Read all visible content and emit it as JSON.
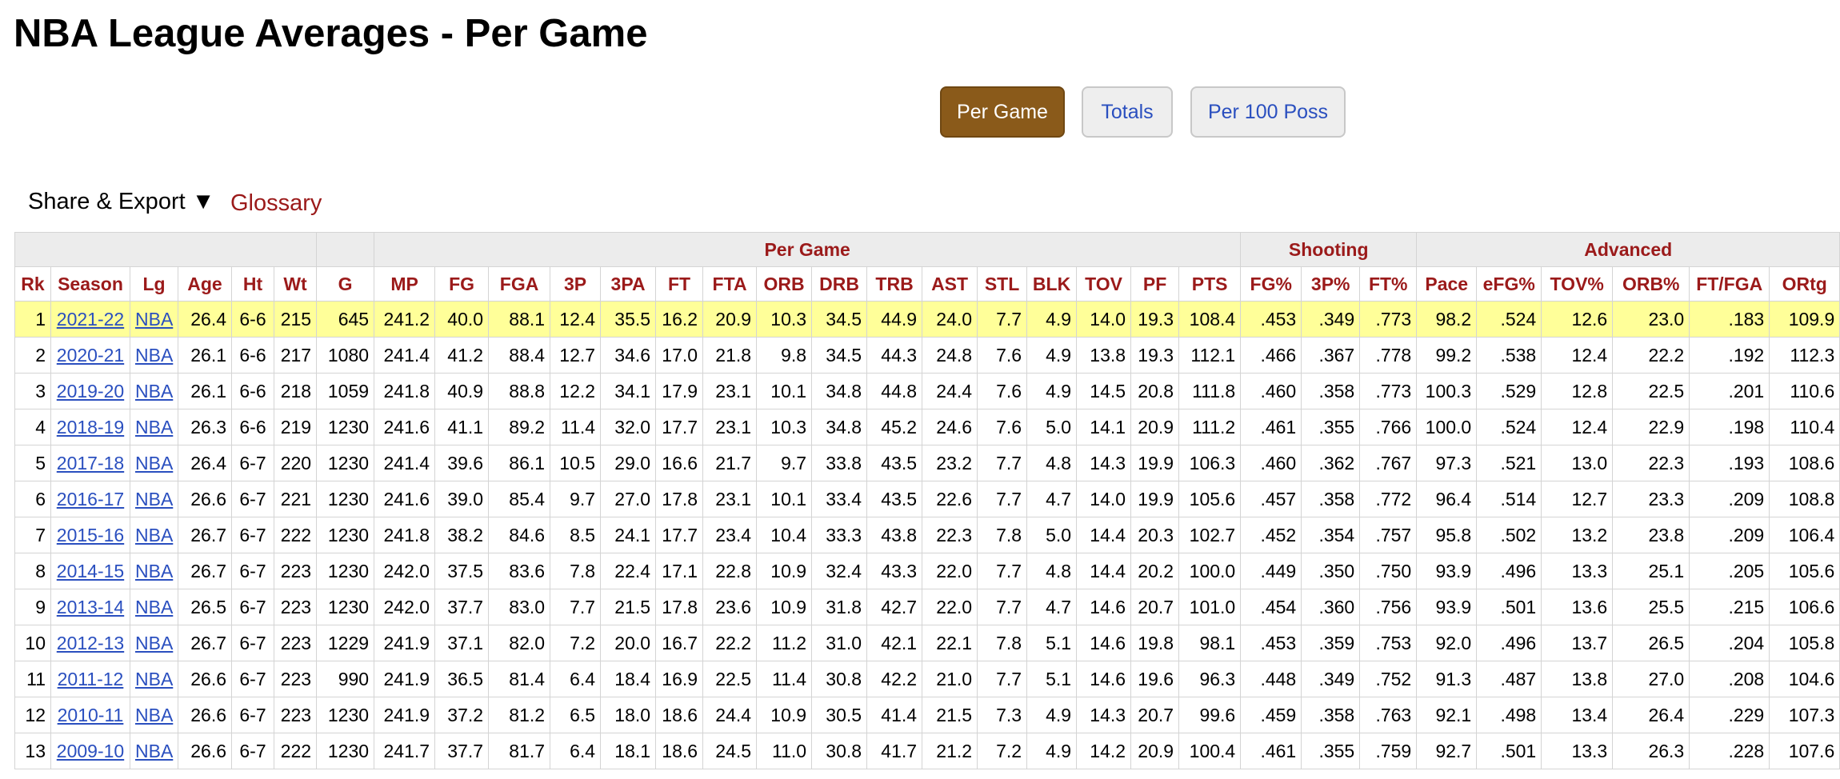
{
  "page": {
    "title": "NBA League Averages - Per Game"
  },
  "filters": {
    "per_game": "Per Game",
    "totals": "Totals",
    "per_100": "Per 100 Poss"
  },
  "toolbar": {
    "share_export": "Share & Export ▼",
    "glossary": "Glossary"
  },
  "colors": {
    "active_button": "#8a5a1a",
    "header_text": "#9b1a1a",
    "link": "#2a4fbf",
    "highlight_row": "#ffff99"
  },
  "table": {
    "over_headers": [
      "",
      "",
      "Per Game",
      "Shooting",
      "Advanced"
    ],
    "columns": [
      "Rk",
      "Season",
      "Lg",
      "Age",
      "Ht",
      "Wt",
      "G",
      "MP",
      "FG",
      "FGA",
      "3P",
      "3PA",
      "FT",
      "FTA",
      "ORB",
      "DRB",
      "TRB",
      "AST",
      "STL",
      "BLK",
      "TOV",
      "PF",
      "PTS",
      "FG%",
      "3P%",
      "FT%",
      "Pace",
      "eFG%",
      "TOV%",
      "ORB%",
      "FT/FGA",
      "ORtg"
    ],
    "rows": [
      [
        "1",
        "2021-22",
        "NBA",
        "26.4",
        "6-6",
        "215",
        "645",
        "241.2",
        "40.0",
        "88.1",
        "12.4",
        "35.5",
        "16.2",
        "20.9",
        "10.3",
        "34.5",
        "44.9",
        "24.0",
        "7.7",
        "4.9",
        "14.0",
        "19.3",
        "108.4",
        ".453",
        ".349",
        ".773",
        "98.2",
        ".524",
        "12.6",
        "23.0",
        ".183",
        "109.9"
      ],
      [
        "2",
        "2020-21",
        "NBA",
        "26.1",
        "6-6",
        "217",
        "1080",
        "241.4",
        "41.2",
        "88.4",
        "12.7",
        "34.6",
        "17.0",
        "21.8",
        "9.8",
        "34.5",
        "44.3",
        "24.8",
        "7.6",
        "4.9",
        "13.8",
        "19.3",
        "112.1",
        ".466",
        ".367",
        ".778",
        "99.2",
        ".538",
        "12.4",
        "22.2",
        ".192",
        "112.3"
      ],
      [
        "3",
        "2019-20",
        "NBA",
        "26.1",
        "6-6",
        "218",
        "1059",
        "241.8",
        "40.9",
        "88.8",
        "12.2",
        "34.1",
        "17.9",
        "23.1",
        "10.1",
        "34.8",
        "44.8",
        "24.4",
        "7.6",
        "4.9",
        "14.5",
        "20.8",
        "111.8",
        ".460",
        ".358",
        ".773",
        "100.3",
        ".529",
        "12.8",
        "22.5",
        ".201",
        "110.6"
      ],
      [
        "4",
        "2018-19",
        "NBA",
        "26.3",
        "6-6",
        "219",
        "1230",
        "241.6",
        "41.1",
        "89.2",
        "11.4",
        "32.0",
        "17.7",
        "23.1",
        "10.3",
        "34.8",
        "45.2",
        "24.6",
        "7.6",
        "5.0",
        "14.1",
        "20.9",
        "111.2",
        ".461",
        ".355",
        ".766",
        "100.0",
        ".524",
        "12.4",
        "22.9",
        ".198",
        "110.4"
      ],
      [
        "5",
        "2017-18",
        "NBA",
        "26.4",
        "6-7",
        "220",
        "1230",
        "241.4",
        "39.6",
        "86.1",
        "10.5",
        "29.0",
        "16.6",
        "21.7",
        "9.7",
        "33.8",
        "43.5",
        "23.2",
        "7.7",
        "4.8",
        "14.3",
        "19.9",
        "106.3",
        ".460",
        ".362",
        ".767",
        "97.3",
        ".521",
        "13.0",
        "22.3",
        ".193",
        "108.6"
      ],
      [
        "6",
        "2016-17",
        "NBA",
        "26.6",
        "6-7",
        "221",
        "1230",
        "241.6",
        "39.0",
        "85.4",
        "9.7",
        "27.0",
        "17.8",
        "23.1",
        "10.1",
        "33.4",
        "43.5",
        "22.6",
        "7.7",
        "4.7",
        "14.0",
        "19.9",
        "105.6",
        ".457",
        ".358",
        ".772",
        "96.4",
        ".514",
        "12.7",
        "23.3",
        ".209",
        "108.8"
      ],
      [
        "7",
        "2015-16",
        "NBA",
        "26.7",
        "6-7",
        "222",
        "1230",
        "241.8",
        "38.2",
        "84.6",
        "8.5",
        "24.1",
        "17.7",
        "23.4",
        "10.4",
        "33.3",
        "43.8",
        "22.3",
        "7.8",
        "5.0",
        "14.4",
        "20.3",
        "102.7",
        ".452",
        ".354",
        ".757",
        "95.8",
        ".502",
        "13.2",
        "23.8",
        ".209",
        "106.4"
      ],
      [
        "8",
        "2014-15",
        "NBA",
        "26.7",
        "6-7",
        "223",
        "1230",
        "242.0",
        "37.5",
        "83.6",
        "7.8",
        "22.4",
        "17.1",
        "22.8",
        "10.9",
        "32.4",
        "43.3",
        "22.0",
        "7.7",
        "4.8",
        "14.4",
        "20.2",
        "100.0",
        ".449",
        ".350",
        ".750",
        "93.9",
        ".496",
        "13.3",
        "25.1",
        ".205",
        "105.6"
      ],
      [
        "9",
        "2013-14",
        "NBA",
        "26.5",
        "6-7",
        "223",
        "1230",
        "242.0",
        "37.7",
        "83.0",
        "7.7",
        "21.5",
        "17.8",
        "23.6",
        "10.9",
        "31.8",
        "42.7",
        "22.0",
        "7.7",
        "4.7",
        "14.6",
        "20.7",
        "101.0",
        ".454",
        ".360",
        ".756",
        "93.9",
        ".501",
        "13.6",
        "25.5",
        ".215",
        "106.6"
      ],
      [
        "10",
        "2012-13",
        "NBA",
        "26.7",
        "6-7",
        "223",
        "1229",
        "241.9",
        "37.1",
        "82.0",
        "7.2",
        "20.0",
        "16.7",
        "22.2",
        "11.2",
        "31.0",
        "42.1",
        "22.1",
        "7.8",
        "5.1",
        "14.6",
        "19.8",
        "98.1",
        ".453",
        ".359",
        ".753",
        "92.0",
        ".496",
        "13.7",
        "26.5",
        ".204",
        "105.8"
      ],
      [
        "11",
        "2011-12",
        "NBA",
        "26.6",
        "6-7",
        "223",
        "990",
        "241.9",
        "36.5",
        "81.4",
        "6.4",
        "18.4",
        "16.9",
        "22.5",
        "11.4",
        "30.8",
        "42.2",
        "21.0",
        "7.7",
        "5.1",
        "14.6",
        "19.6",
        "96.3",
        ".448",
        ".349",
        ".752",
        "91.3",
        ".487",
        "13.8",
        "27.0",
        ".208",
        "104.6"
      ],
      [
        "12",
        "2010-11",
        "NBA",
        "26.6",
        "6-7",
        "223",
        "1230",
        "241.9",
        "37.2",
        "81.2",
        "6.5",
        "18.0",
        "18.6",
        "24.4",
        "10.9",
        "30.5",
        "41.4",
        "21.5",
        "7.3",
        "4.9",
        "14.3",
        "20.7",
        "99.6",
        ".459",
        ".358",
        ".763",
        "92.1",
        ".498",
        "13.4",
        "26.4",
        ".229",
        "107.3"
      ],
      [
        "13",
        "2009-10",
        "NBA",
        "26.6",
        "6-7",
        "222",
        "1230",
        "241.7",
        "37.7",
        "81.7",
        "6.4",
        "18.1",
        "18.6",
        "24.5",
        "11.0",
        "30.8",
        "41.7",
        "21.2",
        "7.2",
        "4.9",
        "14.2",
        "20.9",
        "100.4",
        ".461",
        ".355",
        ".759",
        "92.7",
        ".501",
        "13.3",
        "26.3",
        ".228",
        "107.6"
      ]
    ]
  }
}
